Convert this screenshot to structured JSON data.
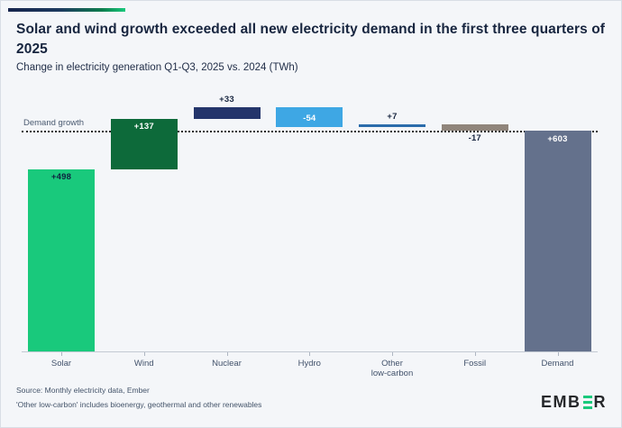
{
  "header": {
    "title": "Solar and wind growth exceeded all new electricity demand in the first three quarters of 2025",
    "subtitle": "Change in electricity generation Q1-Q3, 2025 vs. 2024 (TWh)"
  },
  "chart_data": {
    "type": "bar",
    "subtype": "waterfall",
    "unit": "TWh",
    "title": "Solar and wind growth exceeded all new electricity demand in the first three quarters of 2025",
    "subtitle": "Change in electricity generation Q1-Q3, 2025 vs. 2024 (TWh)",
    "categories": [
      "Solar",
      "Wind",
      "Nuclear",
      "Hydro",
      "Other low-carbon",
      "Fossil",
      "Demand"
    ],
    "values": [
      498,
      137,
      33,
      -54,
      7,
      -17,
      603
    ],
    "reference_line": {
      "label": "Demand growth",
      "value": 603
    },
    "ylim": [
      0,
      680
    ],
    "grid": false,
    "legend": false,
    "bars": [
      {
        "category": "Solar",
        "axis_label": "Solar",
        "value": 498,
        "label": "+498",
        "role": "delta",
        "color": "#19c97c",
        "label_position": "inside-top",
        "label_color": "#0e2240"
      },
      {
        "category": "Wind",
        "axis_label": "Wind",
        "value": 137,
        "label": "+137",
        "role": "delta",
        "color": "#0d6a3a",
        "label_position": "inside-top",
        "label_color": "#ffffff"
      },
      {
        "category": "Nuclear",
        "axis_label": "Nuclear",
        "value": 33,
        "label": "+33",
        "role": "delta",
        "color": "#24356b",
        "label_position": "above",
        "label_color": "#17253f"
      },
      {
        "category": "Hydro",
        "axis_label": "Hydro",
        "value": -54,
        "label": "-54",
        "role": "delta",
        "color": "#3ea7e4",
        "label_position": "inside-middle",
        "label_color": "#ffffff"
      },
      {
        "category": "Other low-carbon",
        "axis_label": "Other\nlow-carbon",
        "value": 7,
        "label": "+7",
        "role": "delta",
        "color": "#2b6cab",
        "label_position": "above",
        "label_color": "#17253f"
      },
      {
        "category": "Fossil",
        "axis_label": "Fossil",
        "value": -17,
        "label": "-17",
        "role": "delta",
        "color": "#90857b",
        "label_position": "below",
        "label_color": "#17253f"
      },
      {
        "category": "Demand",
        "axis_label": "Demand",
        "value": 603,
        "label": "+603",
        "role": "total",
        "color": "#64718c",
        "label_position": "inside-top",
        "label_color": "#ffffff"
      }
    ]
  },
  "footer": {
    "source": "Source: Monthly electricity data, Ember",
    "note": "'Other low-carbon' includes bioenergy, geothermal and other renewables",
    "logo_prefix": "EMB",
    "logo_suffix": "R"
  }
}
